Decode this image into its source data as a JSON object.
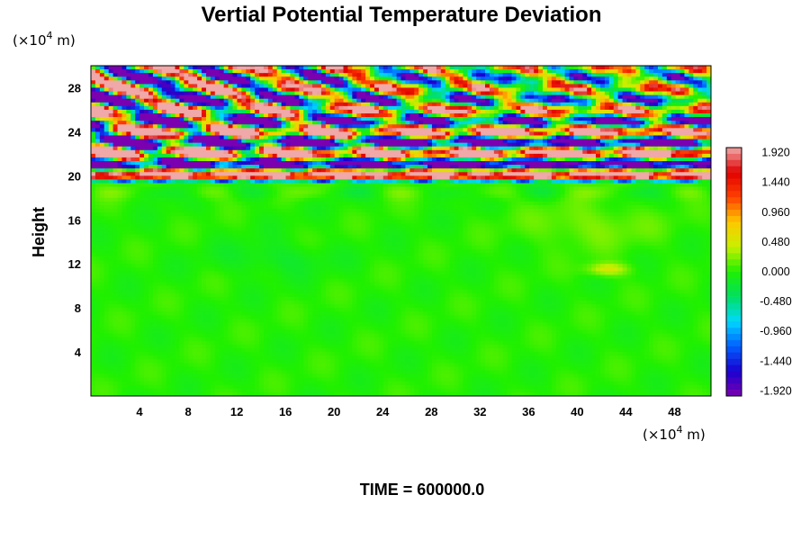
{
  "chart_data": {
    "type": "heatmap",
    "title": "Vertial Potential Temperature Deviation",
    "xlabel": "",
    "ylabel": "Height",
    "x_unit": "(×10",
    "x_unit_exp": "4",
    "x_unit_tail": " m)",
    "y_unit": "(×10",
    "y_unit_exp": "4",
    "y_unit_tail": " m)",
    "xlim": [
      0,
      51
    ],
    "ylim": [
      0,
      30
    ],
    "x_ticks": [
      "4",
      "8",
      "12",
      "16",
      "20",
      "24",
      "28",
      "32",
      "36",
      "40",
      "44",
      "48"
    ],
    "x_tick_values": [
      4,
      8,
      12,
      16,
      20,
      24,
      28,
      32,
      36,
      40,
      44,
      48
    ],
    "y_ticks": [
      "4",
      "8",
      "12",
      "16",
      "20",
      "24",
      "28"
    ],
    "y_tick_values": [
      4,
      8,
      12,
      16,
      20,
      24,
      28
    ],
    "colorbar": {
      "min": -2.0,
      "max": 2.0,
      "labels": [
        "1.920",
        "1.440",
        "0.960",
        "0.480",
        "0.000",
        "-0.480",
        "-0.960",
        "-1.440",
        "-1.920"
      ],
      "label_values": [
        1.92,
        1.44,
        0.96,
        0.48,
        0.0,
        -0.48,
        -0.96,
        -1.44,
        -1.92
      ],
      "colors": [
        "#7a00b0",
        "#1a00d0",
        "#0060ff",
        "#00d8ff",
        "#00e060",
        "#20f000",
        "#c8f000",
        "#ffc800",
        "#ff4000",
        "#e00000",
        "#f0a8a8"
      ]
    },
    "time_label": "TIME = 600000.0"
  }
}
